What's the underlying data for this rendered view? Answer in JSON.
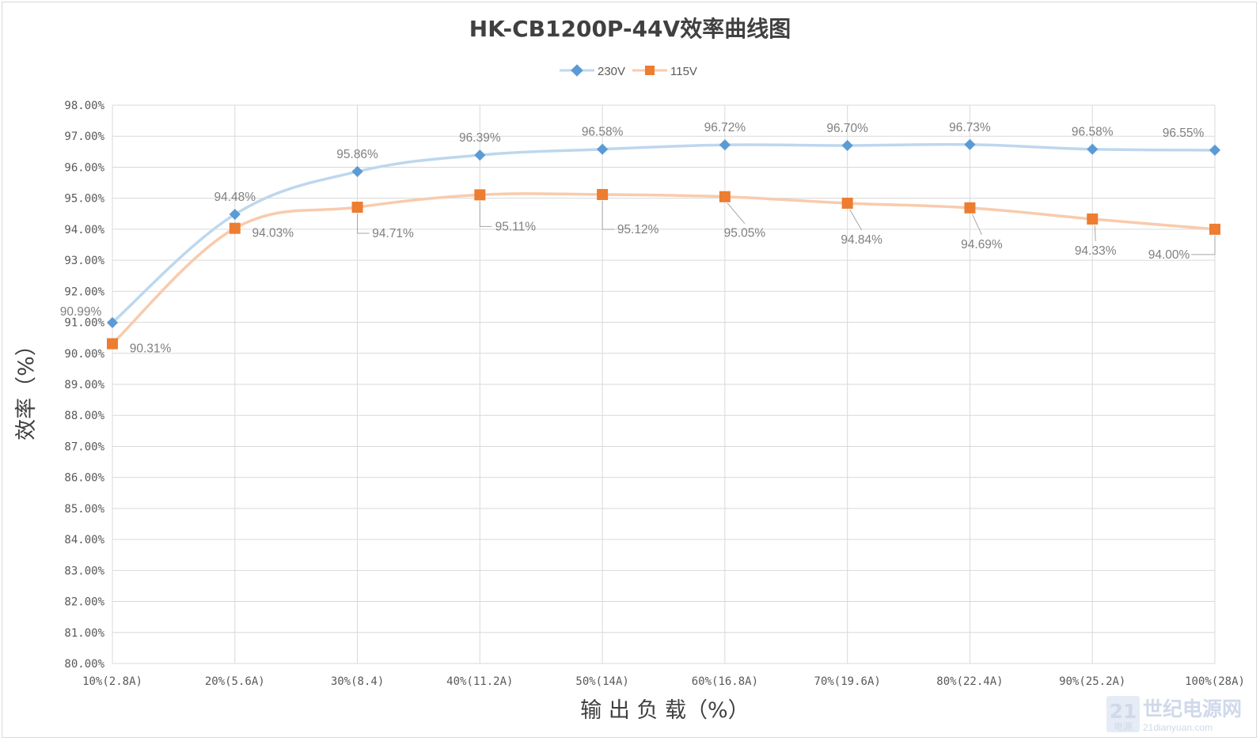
{
  "chart_data": {
    "type": "line",
    "title": "HK-CB1200P-44V效率曲线图",
    "xlabel": "输 出 负 载（%）",
    "ylabel": "效率（%）",
    "categories": [
      "10%(2.8A)",
      "20%(5.6A)",
      "30%(8.4)",
      "40%(11.2A)",
      "50%(14A)",
      "60%(16.8A)",
      "70%(19.6A)",
      "80%(22.4A)",
      "90%(25.2A)",
      "100%(28A)"
    ],
    "ylim": [
      80,
      98
    ],
    "ytick_step": 1,
    "ytick_format": "0.00%",
    "grid": true,
    "legend_position": "top",
    "series": [
      {
        "name": "230V",
        "color": "#5b9bd5",
        "line_color": "#bdd7ee",
        "marker": "diamond",
        "values": [
          90.99,
          94.48,
          95.86,
          96.39,
          96.58,
          96.72,
          96.7,
          96.73,
          96.58,
          96.55
        ],
        "labels": [
          "90.99%",
          "94.48%",
          "95.86%",
          "96.39%",
          "96.58%",
          "96.72%",
          "96.70%",
          "96.73%",
          "96.58%",
          "96.55%"
        ]
      },
      {
        "name": "115V",
        "color": "#ed7d31",
        "line_color": "#f8cbad",
        "marker": "square",
        "values": [
          90.31,
          94.03,
          94.71,
          95.11,
          95.12,
          95.05,
          94.84,
          94.69,
          94.33,
          94.0
        ],
        "labels": [
          "90.31%",
          "94.03%",
          "94.71%",
          "95.11%",
          "95.12%",
          "95.05%",
          "94.84%",
          "94.69%",
          "94.33%",
          "94.00%"
        ]
      }
    ]
  },
  "watermark": {
    "logo_number": "21",
    "logo_sub": "电源",
    "brand": "世纪电源网",
    "url": "21dianyuan.com"
  }
}
